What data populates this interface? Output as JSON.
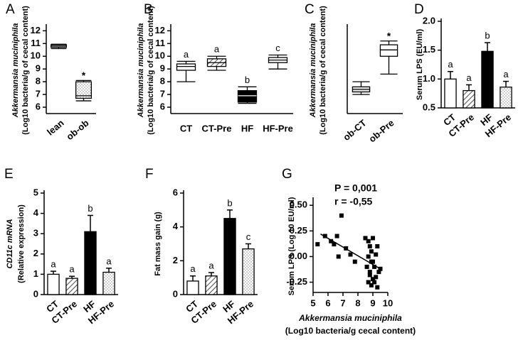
{
  "chart_data": [
    {
      "type": "box",
      "label": "A",
      "ylabel": [
        "Akkermansia muciniphila",
        "(Log10 bacteria/g of cecal content)"
      ],
      "categories": [
        "lean",
        "ob-ob"
      ],
      "boxes": [
        {
          "min": 10.6,
          "q1": 10.7,
          "median": 10.8,
          "q3": 10.9,
          "max": 10.95
        },
        {
          "min": 6.5,
          "q1": 6.7,
          "median": 6.9,
          "q3": 8.0,
          "max": 8.1
        }
      ],
      "fills": [
        "grey",
        "dotted"
      ],
      "annotations": [
        null,
        "*"
      ],
      "ylim": [
        5.5,
        12.3
      ],
      "yticks": [
        6,
        7,
        8,
        9,
        10,
        11,
        12
      ]
    },
    {
      "type": "box",
      "label": "B",
      "ylabel": [
        "Akkermansia muciniphila",
        "(Log10 bacteria/g of cecal content)"
      ],
      "categories": [
        "CT",
        "CT-Pre",
        "HF",
        "HF-Pre"
      ],
      "boxes": [
        {
          "min": 8.0,
          "q1": 8.9,
          "median": 9.2,
          "q3": 9.4,
          "max": 9.6
        },
        {
          "min": 8.9,
          "q1": 9.2,
          "median": 9.5,
          "q3": 9.8,
          "max": 10.0
        },
        {
          "min": 6.3,
          "q1": 6.4,
          "median": 6.9,
          "q3": 7.3,
          "max": 7.6
        },
        {
          "min": 9.0,
          "q1": 9.5,
          "median": 9.7,
          "q3": 9.9,
          "max": 10.1
        }
      ],
      "fills": [
        "white",
        "hatched",
        "black",
        "white"
      ],
      "annotations": [
        "a",
        "a",
        "b",
        "c"
      ],
      "ylim": [
        5.5,
        12.3
      ],
      "yticks": [
        6,
        7,
        8,
        9,
        10,
        11,
        12
      ]
    },
    {
      "type": "box",
      "label": "C",
      "ylabel": [
        "Akkermansia muciniphila",
        "(Log10 bacteria/g of cecal content)"
      ],
      "categories": [
        "ob-CT",
        "ob-Pre"
      ],
      "boxes": [
        {
          "min": 7.0,
          "q1": 7.2,
          "median": 7.4,
          "q3": 7.6,
          "max": 8.0
        },
        {
          "min": 8.6,
          "q1": 10.0,
          "median": 10.5,
          "q3": 10.9,
          "max": 11.2
        }
      ],
      "fills": [
        "grey",
        "white"
      ],
      "annotations": [
        null,
        "*"
      ],
      "ylim": [
        5.5,
        12.3
      ]
    },
    {
      "type": "bar",
      "label": "D",
      "ylabel": [
        "Serum LPS (EU/ml)"
      ],
      "categories": [
        "CT",
        "CT-Pre",
        "HF",
        "HF-Pre"
      ],
      "values": [
        1.0,
        0.8,
        1.48,
        0.86
      ],
      "errors": [
        0.13,
        0.1,
        0.15,
        0.1
      ],
      "fills": [
        "white",
        "hatched",
        "black",
        "dotted"
      ],
      "annotations": [
        "a",
        "a",
        "b",
        "a"
      ],
      "ylim": [
        0.5,
        2.0
      ],
      "yticks": [
        0.5,
        {
          "value": 1.0,
          "label": "1.0"
        },
        1.5,
        {
          "value": 2.0,
          "label": "2.0"
        }
      ]
    },
    {
      "type": "bar",
      "label": "E",
      "ylabel": [
        "CD11c mRNA",
        "(Relative expression)"
      ],
      "categories": [
        "CT",
        "CT-Pre",
        "HF",
        "HF-Pre"
      ],
      "values": [
        1.0,
        0.8,
        3.1,
        1.1
      ],
      "errors": [
        0.15,
        0.1,
        0.8,
        0.2
      ],
      "fills": [
        "white",
        "hatched",
        "black",
        "dotted"
      ],
      "annotations": [
        "a",
        "a",
        "b",
        "a"
      ],
      "ylim": [
        0,
        5
      ],
      "yticks": [
        0,
        1,
        2,
        3,
        4,
        5
      ]
    },
    {
      "type": "bar",
      "label": "F",
      "ylabel": [
        "Fat mass gain (g)"
      ],
      "categories": [
        "CT",
        "CT-Pre",
        "HF",
        "HF-Pre"
      ],
      "values": [
        0.8,
        1.1,
        4.5,
        2.7
      ],
      "errors": [
        0.3,
        0.2,
        0.5,
        0.3
      ],
      "fills": [
        "white",
        "hatched",
        "black",
        "dotted"
      ],
      "annotations": [
        "a",
        "a",
        "b",
        "c"
      ],
      "ylim": [
        0,
        6
      ],
      "yticks": [
        0,
        2,
        4,
        6
      ]
    },
    {
      "type": "scatter",
      "label": "G",
      "ylabel": [
        "Serum LPS (Log 10 EU/ml)"
      ],
      "xlabel": [
        "Akkermansia muciniphila",
        "(Log10 bacteria/g cecal content)"
      ],
      "annotations": [
        "P = 0,001",
        "r = -0,55"
      ],
      "x": [
        5.3,
        5.8,
        6.2,
        6.4,
        6.6,
        6.7,
        6.9,
        7.2,
        7.5,
        7.8,
        8.5,
        8.7,
        8.8,
        8.9,
        9.0,
        8.7,
        8.9,
        9.1,
        9.2,
        9.3,
        8.6,
        8.8,
        9.0,
        9.2,
        9.4,
        8.7,
        8.9,
        9.1,
        9.3,
        9.5,
        9.0,
        8.8
      ],
      "y": [
        0.12,
        0.2,
        0.15,
        0.12,
        0.2,
        0.0,
        0.4,
        0.08,
        0.02,
        -0.05,
        0.18,
        0.15,
        0.1,
        0.05,
        0.18,
        0.0,
        -0.05,
        -0.1,
        0.02,
        0.1,
        -0.1,
        -0.18,
        -0.22,
        -0.2,
        -0.15,
        -0.25,
        -0.28,
        -0.25,
        -0.3,
        -0.12,
        -0.05,
        -0.15
      ],
      "trend": {
        "x": [
          5.5,
          9.5
        ],
        "y": [
          0.22,
          -0.12
        ]
      },
      "xlim": [
        5,
        10
      ],
      "xticks": [
        5,
        6,
        7,
        8,
        9,
        10
      ],
      "ylim": [
        -0.35,
        0.55
      ],
      "yticks": [
        {
          "value": -0.25,
          "label": "-0.25"
        },
        {
          "value": 0,
          "label": "0.00"
        },
        0.25,
        {
          "value": 0.5,
          "label": "0.50"
        }
      ]
    }
  ]
}
